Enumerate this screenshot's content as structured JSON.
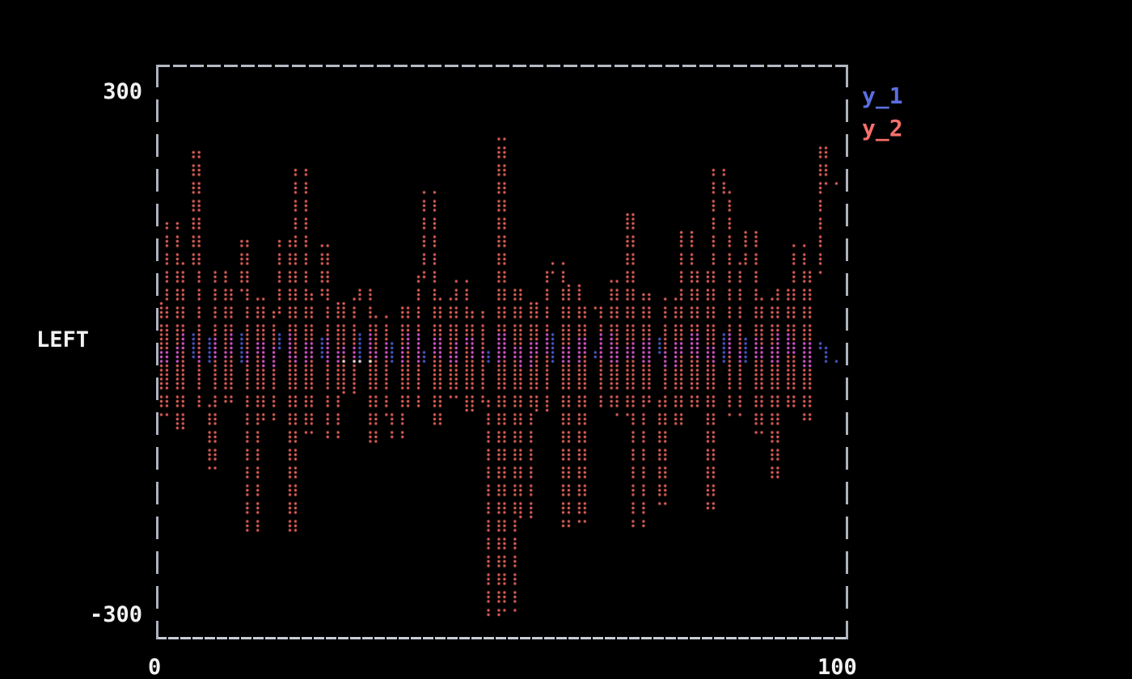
{
  "figure": {
    "background": "#000000",
    "border_color": "#b5bac4"
  },
  "axes": {
    "y_top_label": "300",
    "y_bottom_label": "-300",
    "y_axis_title": "LEFT",
    "x_left_label": "0",
    "x_right_label": "100",
    "x_range": [
      0,
      100
    ],
    "y_range": [
      -300,
      300
    ]
  },
  "legend": {
    "items": [
      {
        "label": "y_1",
        "color": "#5a6fe0"
      },
      {
        "label": "y_2",
        "color": "#f76f6a"
      }
    ]
  },
  "chart_data": {
    "type": "scatter",
    "marker": "terminal-braille-dot",
    "title": "",
    "xlabel": "",
    "ylabel": "LEFT",
    "xlim": [
      0,
      100
    ],
    "ylim": [
      -300,
      300
    ],
    "grid": false,
    "legend_position": "outside-top-right",
    "x_start": 0,
    "x_step": 1.1905,
    "n_points": 85,
    "series": [
      {
        "name": "y_1",
        "color": "#5062e0",
        "y": [
          -8,
          2,
          -12,
          6,
          18,
          -4,
          -10,
          14,
          -6,
          2,
          20,
          -8,
          -2,
          10,
          -14,
          4,
          22,
          -6,
          -10,
          8,
          -4,
          16,
          -12,
          2,
          6,
          -8,
          18,
          -2,
          -6,
          12,
          -10,
          4,
          20,
          -8,
          2,
          14,
          -4,
          -12,
          8,
          16,
          -6,
          2,
          -10,
          22,
          -4,
          6,
          -14,
          10,
          -2,
          18,
          -8,
          4,
          -12,
          14,
          2,
          -6,
          20,
          -10,
          6,
          -4,
          12,
          -8,
          16,
          2,
          -14,
          8,
          -2,
          22,
          -6,
          4,
          -10,
          18,
          2,
          -8,
          14,
          -4,
          6,
          -12,
          20,
          -2,
          8,
          -16,
          10,
          4,
          -8
        ]
      },
      {
        "name": "y_2",
        "color": "#f4685f",
        "y": [
          55,
          -70,
          148,
          -85,
          100,
          231,
          -60,
          -131,
          90,
          -55,
          70,
          129,
          -205,
          60,
          -75,
          45,
          129,
          -205,
          208,
          -90,
          65,
          120,
          -98,
          55,
          -45,
          60,
          73,
          -103,
          40,
          -70,
          -98,
          50,
          -60,
          85,
          185,
          -80,
          60,
          -50,
          83,
          -65,
          45,
          -55,
          -300,
          245,
          -293,
          70,
          -187,
          55,
          -65,
          90,
          101,
          -200,
          75,
          -196,
          50,
          50,
          -60,
          80,
          -70,
          157,
          -200,
          65,
          -55,
          -173,
          60,
          -80,
          138,
          -60,
          90,
          -177,
          208,
          185,
          -70,
          100,
          138,
          -90,
          60,
          -145,
          70,
          -60,
          120,
          -75,
          90,
          236,
          194
        ]
      }
    ],
    "overlap_color": "#ee5ede",
    "white_overlap_dots": [
      {
        "x": 27.9,
        "y": -9
      },
      {
        "x": 28.4,
        "y": -9
      },
      {
        "x": 29.9,
        "y": -9
      },
      {
        "x": 30.4,
        "y": -9
      },
      {
        "x": 31.0,
        "y": -9
      }
    ]
  }
}
